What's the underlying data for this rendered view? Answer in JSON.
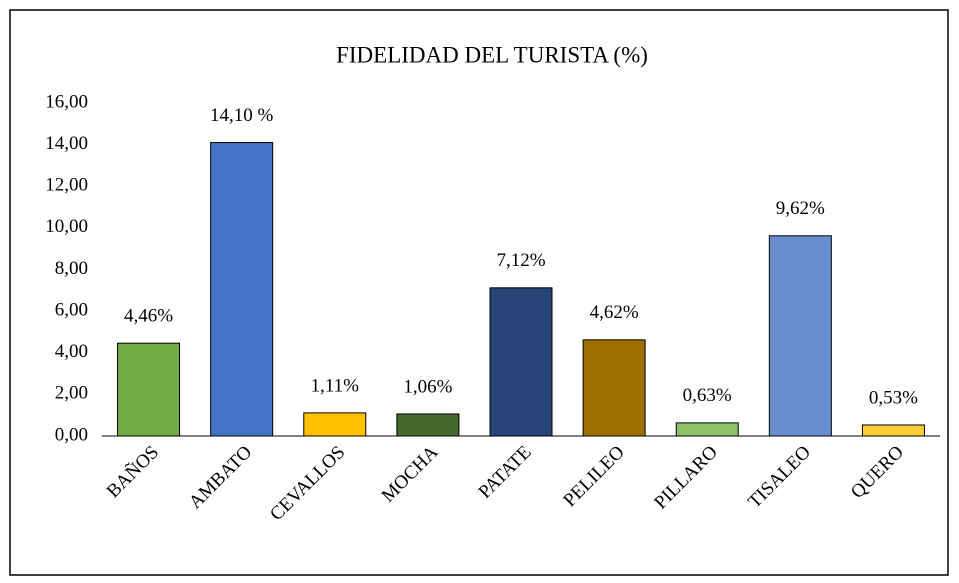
{
  "chart_data": {
    "type": "bar",
    "title": "FIDELIDAD DEL TURISTA (%)",
    "categories": [
      "BAÑOS",
      "AMBATO",
      "CEVALLOS",
      "MOCHA",
      "PATATE",
      "PELILEO",
      "PILLARO",
      "TISALEO",
      "QUERO"
    ],
    "values": [
      4.46,
      14.1,
      1.11,
      1.06,
      7.12,
      4.62,
      0.63,
      9.62,
      0.53
    ],
    "value_labels": [
      "4,46%",
      "14,10 %",
      "1,11%",
      "1,06%",
      "7,12%",
      "4,62%",
      "0,63%",
      "9,62%",
      "0,53%"
    ],
    "colors": [
      "#70ad47",
      "#4472c4",
      "#ffc000",
      "#43682b",
      "#264478",
      "#9e7000",
      "#8cc168",
      "#698ed0",
      "#ffcd33"
    ],
    "ylim": [
      0,
      16
    ],
    "yticks": [
      {
        "value": 0,
        "label": "0,00"
      },
      {
        "value": 2,
        "label": "2,00"
      },
      {
        "value": 4,
        "label": "4,00"
      },
      {
        "value": 6,
        "label": "6,00"
      },
      {
        "value": 8,
        "label": "8,00"
      },
      {
        "value": 10,
        "label": "10,00"
      },
      {
        "value": 12,
        "label": "12,00"
      },
      {
        "value": 14,
        "label": "14,00"
      },
      {
        "value": 16,
        "label": "16,00"
      }
    ],
    "grid": false
  }
}
